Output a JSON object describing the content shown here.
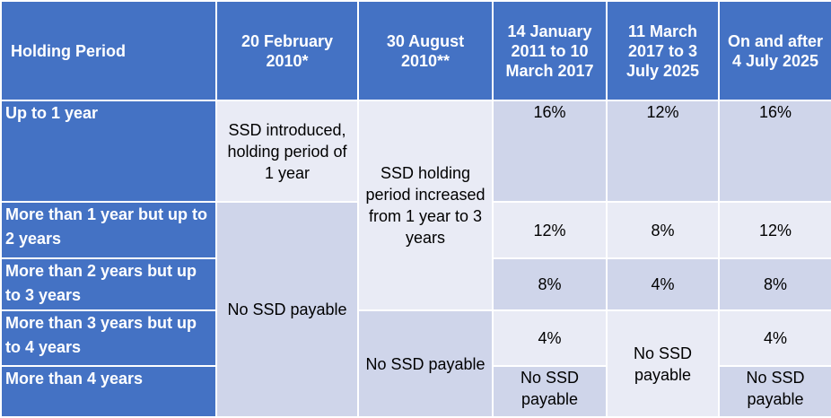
{
  "headers": [
    "Holding Period",
    "20 February 2010*",
    "30 August 2010**",
    "14 January 2011 to 10 March 2017",
    "11 March 2017 to 3 July 2025",
    "On and after 4 July 2025"
  ],
  "rows": [
    "Up to 1 year",
    "More than 1 year but up to 2 years",
    "More than 2 years but up to 3 years",
    "More than 3 years but up to 4 years",
    "More than 4 years"
  ],
  "cells": {
    "feb2010_introduced": "SSD introduced, holding period of 1 year",
    "feb2010_no_ssd": "No SSD payable",
    "aug2010_increased": "SSD holding period increased from 1 year to 3 years",
    "aug2010_no_ssd": "No SSD payable",
    "jan2011": [
      "16%",
      "12%",
      "8%",
      "4%",
      "No SSD payable"
    ],
    "mar2017": [
      "12%",
      "8%",
      "4%",
      "No SSD payable"
    ],
    "jul2025": [
      "16%",
      "12%",
      "8%",
      "4%",
      "No SSD payable"
    ]
  }
}
